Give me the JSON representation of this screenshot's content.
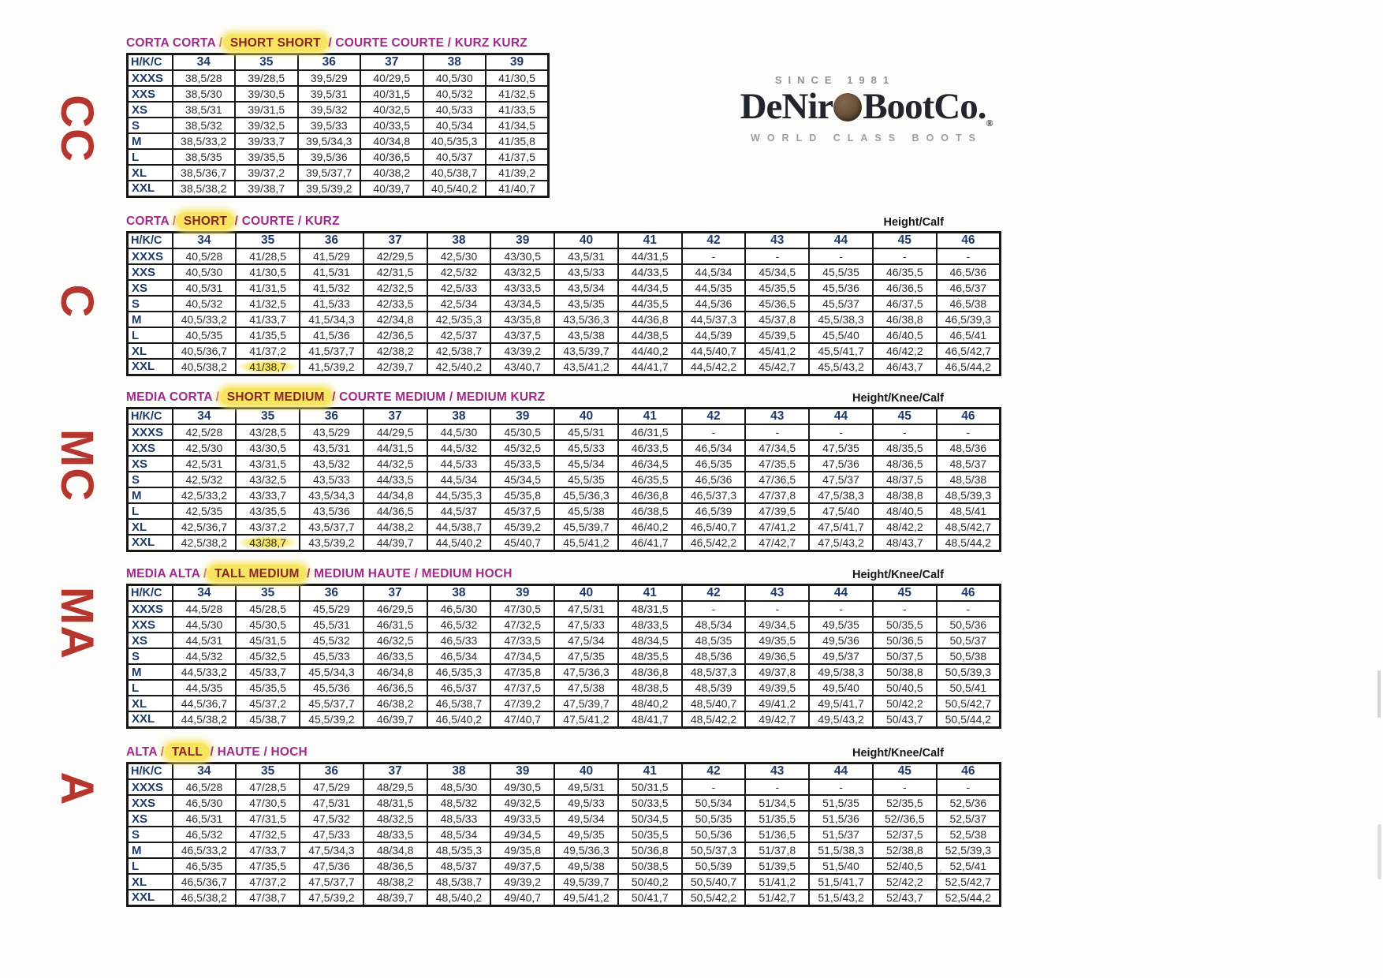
{
  "side_labels": [
    "CC",
    "C",
    "MC",
    "MA",
    "A"
  ],
  "logo": {
    "since": "SINCE 1981",
    "name_left": "DeNir",
    "name_right": "BootCo.",
    "registered": "®",
    "tagline": "WORLD CLASS BOOTS"
  },
  "colors": {
    "title_magenta": "#a02a8c",
    "title_highlight_red": "#8a2424",
    "highlight_yellow": "#f8e55f",
    "header_blue": "#1d3a6c",
    "value_gray": "#2e2e2e",
    "side_letter_red": "#b5362e",
    "logo_dark": "#22242e",
    "logo_gray": "#8e9398",
    "coin_brown": "#6b533c"
  },
  "tables": [
    {
      "id": "corta-corta",
      "title_segments": [
        {
          "t": "CORTA CORTA",
          "hl": false
        },
        {
          "t": " / ",
          "hl": false
        },
        {
          "t": "SHORT SHORT",
          "hl": true
        },
        {
          "t": " / ",
          "hl": false
        },
        {
          "t": "COURTE COURTE",
          "hl": false
        },
        {
          "t": " / ",
          "hl": false
        },
        {
          "t": "KURZ KURZ",
          "hl": false
        }
      ],
      "height_label": "",
      "corner_label": "H/K/C",
      "sizes": [
        "34",
        "35",
        "36",
        "37",
        "38",
        "39"
      ],
      "marked_cells": [],
      "rows": [
        {
          "label": "XXXS",
          "values": [
            "38,5/28",
            "39/28,5",
            "39,5/29",
            "40/29,5",
            "40,5/30",
            "41/30,5"
          ]
        },
        {
          "label": "XXS",
          "values": [
            "38,5/30",
            "39/30,5",
            "39,5/31",
            "40/31,5",
            "40,5/32",
            "41/32,5"
          ]
        },
        {
          "label": "XS",
          "values": [
            "38,5/31",
            "39/31,5",
            "39,5/32",
            "40/32,5",
            "40,5/33",
            "41/33,5"
          ]
        },
        {
          "label": "S",
          "values": [
            "38,5/32",
            "39/32,5",
            "39,5/33",
            "40/33,5",
            "40,5/34",
            "41/34,5"
          ]
        },
        {
          "label": "M",
          "values": [
            "38,5/33,2",
            "39/33,7",
            "39,5/34,3",
            "40/34,8",
            "40,5/35,3",
            "41/35,8"
          ]
        },
        {
          "label": "L",
          "values": [
            "38,5/35",
            "39/35,5",
            "39,5/36",
            "40/36,5",
            "40,5/37",
            "41/37,5"
          ]
        },
        {
          "label": "XL",
          "values": [
            "38,5/36,7",
            "39/37,2",
            "39,5/37,7",
            "40/38,2",
            "40,5/38,7",
            "41/39,2"
          ]
        },
        {
          "label": "XXL",
          "values": [
            "38,5/38,2",
            "39/38,7",
            "39,5/39,2",
            "40/39,7",
            "40,5/40,2",
            "41/40,7"
          ]
        }
      ]
    },
    {
      "id": "corta",
      "title_segments": [
        {
          "t": "CORTA",
          "hl": false
        },
        {
          "t": " / ",
          "hl": false
        },
        {
          "t": "SHORT",
          "hl": true
        },
        {
          "t": " / ",
          "hl": false
        },
        {
          "t": "COURTE",
          "hl": false
        },
        {
          "t": " / ",
          "hl": false
        },
        {
          "t": "KURZ",
          "hl": false
        }
      ],
      "height_label": "Height/Calf",
      "corner_label": "H/K/C",
      "sizes": [
        "34",
        "35",
        "36",
        "37",
        "38",
        "39",
        "40",
        "41",
        "42",
        "43",
        "44",
        "45",
        "46"
      ],
      "marked_cells": [
        [
          7,
          1
        ]
      ],
      "rows": [
        {
          "label": "XXXS",
          "values": [
            "40,5/28",
            "41/28,5",
            "41,5/29",
            "42/29,5",
            "42,5/30",
            "43/30,5",
            "43,5/31",
            "44/31,5",
            "-",
            "-",
            "-",
            "-",
            "-"
          ]
        },
        {
          "label": "XXS",
          "values": [
            "40,5/30",
            "41/30,5",
            "41,5/31",
            "42/31,5",
            "42,5/32",
            "43/32,5",
            "43,5/33",
            "44/33,5",
            "44,5/34",
            "45/34,5",
            "45,5/35",
            "46/35,5",
            "46,5/36"
          ]
        },
        {
          "label": "XS",
          "values": [
            "40,5/31",
            "41/31,5",
            "41,5/32",
            "42/32,5",
            "42,5/33",
            "43/33,5",
            "43,5/34",
            "44/34,5",
            "44,5/35",
            "45/35,5",
            "45,5/36",
            "46/36,5",
            "46,5/37"
          ]
        },
        {
          "label": "S",
          "values": [
            "40,5/32",
            "41/32,5",
            "41,5/33",
            "42/33,5",
            "42,5/34",
            "43/34,5",
            "43,5/35",
            "44/35,5",
            "44,5/36",
            "45/36,5",
            "45,5/37",
            "46/37,5",
            "46,5/38"
          ]
        },
        {
          "label": "M",
          "values": [
            "40,5/33,2",
            "41/33,7",
            "41,5/34,3",
            "42/34,8",
            "42,5/35,3",
            "43/35,8",
            "43,5/36,3",
            "44/36,8",
            "44,5/37,3",
            "45/37,8",
            "45,5/38,3",
            "46/38,8",
            "46,5/39,3"
          ]
        },
        {
          "label": "L",
          "values": [
            "40,5/35",
            "41/35,5",
            "41,5/36",
            "42/36,5",
            "42,5/37",
            "43/37,5",
            "43,5/38",
            "44/38,5",
            "44,5/39",
            "45/39,5",
            "45,5/40",
            "46/40,5",
            "46,5/41"
          ]
        },
        {
          "label": "XL",
          "values": [
            "40,5/36,7",
            "41/37,2",
            "41,5/37,7",
            "42/38,2",
            "42,5/38,7",
            "43/39,2",
            "43,5/39,7",
            "44/40,2",
            "44,5/40,7",
            "45/41,2",
            "45,5/41,7",
            "46/42,2",
            "46,5/42,7"
          ]
        },
        {
          "label": "XXL",
          "values": [
            "40,5/38,2",
            "41/38,7",
            "41,5/39,2",
            "42/39,7",
            "42,5/40,2",
            "43/40,7",
            "43,5/41,2",
            "44/41,7",
            "44,5/42,2",
            "45/42,7",
            "45,5/43,2",
            "46/43,7",
            "46,5/44,2"
          ]
        }
      ]
    },
    {
      "id": "media-corta",
      "title_segments": [
        {
          "t": "MEDIA CORTA",
          "hl": false
        },
        {
          "t": " / ",
          "hl": false
        },
        {
          "t": "SHORT MEDIUM",
          "hl": true
        },
        {
          "t": " / ",
          "hl": false
        },
        {
          "t": "COURTE MEDIUM",
          "hl": false
        },
        {
          "t": " / ",
          "hl": false
        },
        {
          "t": "MEDIUM KURZ",
          "hl": false
        }
      ],
      "height_label": "Height/Knee/Calf",
      "corner_label": "H/K/C",
      "sizes": [
        "34",
        "35",
        "36",
        "37",
        "38",
        "39",
        "40",
        "41",
        "42",
        "43",
        "44",
        "45",
        "46"
      ],
      "marked_cells": [
        [
          7,
          1
        ]
      ],
      "rows": [
        {
          "label": "XXXS",
          "values": [
            "42,5/28",
            "43/28,5",
            "43,5/29",
            "44/29,5",
            "44,5/30",
            "45/30,5",
            "45,5/31",
            "46/31,5",
            "-",
            "-",
            "-",
            "-",
            "-"
          ]
        },
        {
          "label": "XXS",
          "values": [
            "42,5/30",
            "43/30,5",
            "43,5/31",
            "44/31,5",
            "44,5/32",
            "45/32,5",
            "45,5/33",
            "46/33,5",
            "46,5/34",
            "47/34,5",
            "47,5/35",
            "48/35,5",
            "48,5/36"
          ]
        },
        {
          "label": "XS",
          "values": [
            "42,5/31",
            "43/31,5",
            "43,5/32",
            "44/32,5",
            "44,5/33",
            "45/33,5",
            "45,5/34",
            "46/34,5",
            "46,5/35",
            "47/35,5",
            "47,5/36",
            "48/36,5",
            "48,5/37"
          ]
        },
        {
          "label": "S",
          "values": [
            "42,5/32",
            "43/32,5",
            "43,5/33",
            "44/33,5",
            "44,5/34",
            "45/34,5",
            "45,5/35",
            "46/35,5",
            "46,5/36",
            "47/36,5",
            "47,5/37",
            "48/37,5",
            "48,5/38"
          ]
        },
        {
          "label": "M",
          "values": [
            "42,5/33,2",
            "43/33,7",
            "43,5/34,3",
            "44/34,8",
            "44,5/35,3",
            "45/35,8",
            "45,5/36,3",
            "46/36,8",
            "46,5/37,3",
            "47/37,8",
            "47,5/38,3",
            "48/38,8",
            "48,5/39,3"
          ]
        },
        {
          "label": "L",
          "values": [
            "42,5/35",
            "43/35,5",
            "43,5/36",
            "44/36,5",
            "44,5/37",
            "45/37,5",
            "45,5/38",
            "46/38,5",
            "46,5/39",
            "47/39,5",
            "47,5/40",
            "48/40,5",
            "48,5/41"
          ]
        },
        {
          "label": "XL",
          "values": [
            "42,5/36,7",
            "43/37,2",
            "43,5/37,7",
            "44/38,2",
            "44,5/38,7",
            "45/39,2",
            "45,5/39,7",
            "46/40,2",
            "46,5/40,7",
            "47/41,2",
            "47,5/41,7",
            "48/42,2",
            "48,5/42,7"
          ]
        },
        {
          "label": "XXL",
          "values": [
            "42,5/38,2",
            "43/38,7",
            "43,5/39,2",
            "44/39,7",
            "44,5/40,2",
            "45/40,7",
            "45,5/41,2",
            "46/41,7",
            "46,5/42,2",
            "47/42,7",
            "47,5/43,2",
            "48/43,7",
            "48,5/44,2"
          ]
        }
      ]
    },
    {
      "id": "media-alta",
      "title_segments": [
        {
          "t": "MEDIA ALTA",
          "hl": false
        },
        {
          "t": " / ",
          "hl": false
        },
        {
          "t": "TALL MEDIUM",
          "hl": true
        },
        {
          "t": " / ",
          "hl": false
        },
        {
          "t": "MEDIUM HAUTE",
          "hl": false
        },
        {
          "t": " / ",
          "hl": false
        },
        {
          "t": "MEDIUM HOCH",
          "hl": false
        }
      ],
      "height_label": "Height/Knee/Calf",
      "corner_label": "H/K/C",
      "sizes": [
        "34",
        "35",
        "36",
        "37",
        "38",
        "39",
        "40",
        "41",
        "42",
        "43",
        "44",
        "45",
        "46"
      ],
      "marked_cells": [],
      "rows": [
        {
          "label": "XXXS",
          "values": [
            "44,5/28",
            "45/28,5",
            "45,5/29",
            "46/29,5",
            "46,5/30",
            "47/30,5",
            "47,5/31",
            "48/31,5",
            "-",
            "-",
            "-",
            "-",
            "-"
          ]
        },
        {
          "label": "XXS",
          "values": [
            "44,5/30",
            "45/30,5",
            "45,5/31",
            "46/31,5",
            "46,5/32",
            "47/32,5",
            "47,5/33",
            "48/33,5",
            "48,5/34",
            "49/34,5",
            "49,5/35",
            "50/35,5",
            "50,5/36"
          ]
        },
        {
          "label": "XS",
          "values": [
            "44,5/31",
            "45/31,5",
            "45,5/32",
            "46/32,5",
            "46,5/33",
            "47/33,5",
            "47,5/34",
            "48/34,5",
            "48,5/35",
            "49/35,5",
            "49,5/36",
            "50/36,5",
            "50,5/37"
          ]
        },
        {
          "label": "S",
          "values": [
            "44,5/32",
            "45/32,5",
            "45,5/33",
            "46/33,5",
            "46,5/34",
            "47/34,5",
            "47,5/35",
            "48/35,5",
            "48,5/36",
            "49/36,5",
            "49,5/37",
            "50/37,5",
            "50,5/38"
          ]
        },
        {
          "label": "M",
          "values": [
            "44,5/33,2",
            "45/33,7",
            "45,5/34,3",
            "46/34,8",
            "46,5/35,3",
            "47/35,8",
            "47,5/36,3",
            "48/36,8",
            "48,5/37,3",
            "49/37,8",
            "49,5/38,3",
            "50/38,8",
            "50,5/39,3"
          ]
        },
        {
          "label": "L",
          "values": [
            "44,5/35",
            "45/35,5",
            "45,5/36",
            "46/36,5",
            "46,5/37",
            "47/37,5",
            "47,5/38",
            "48/38,5",
            "48,5/39",
            "49/39,5",
            "49,5/40",
            "50/40,5",
            "50,5/41"
          ]
        },
        {
          "label": "XL",
          "values": [
            "44,5/36,7",
            "45/37,2",
            "45,5/37,7",
            "46/38,2",
            "46,5/38,7",
            "47/39,2",
            "47,5/39,7",
            "48/40,2",
            "48,5/40,7",
            "49/41,2",
            "49,5/41,7",
            "50/42,2",
            "50,5/42,7"
          ]
        },
        {
          "label": "XXL",
          "values": [
            "44,5/38,2",
            "45/38,7",
            "45,5/39,2",
            "46/39,7",
            "46,5/40,2",
            "47/40,7",
            "47,5/41,2",
            "48/41,7",
            "48,5/42,2",
            "49/42,7",
            "49,5/43,2",
            "50/43,7",
            "50,5/44,2"
          ]
        }
      ]
    },
    {
      "id": "alta",
      "title_segments": [
        {
          "t": "ALTA",
          "hl": false
        },
        {
          "t": " / ",
          "hl": false
        },
        {
          "t": "TALL",
          "hl": true
        },
        {
          "t": " / ",
          "hl": false
        },
        {
          "t": "HAUTE",
          "hl": false
        },
        {
          "t": " / ",
          "hl": false
        },
        {
          "t": "HOCH",
          "hl": false
        }
      ],
      "height_label": "Height/Knee/Calf",
      "corner_label": "H/K/C",
      "sizes": [
        "34",
        "35",
        "36",
        "37",
        "38",
        "39",
        "40",
        "41",
        "42",
        "43",
        "44",
        "45",
        "46"
      ],
      "marked_cells": [],
      "rows": [
        {
          "label": "XXXS",
          "values": [
            "46,5/28",
            "47/28,5",
            "47,5/29",
            "48/29,5",
            "48,5/30",
            "49/30,5",
            "49,5/31",
            "50/31,5",
            "-",
            "-",
            "-",
            "-",
            "-"
          ]
        },
        {
          "label": "XXS",
          "values": [
            "46,5/30",
            "47/30,5",
            "47,5/31",
            "48/31,5",
            "48,5/32",
            "49/32,5",
            "49,5/33",
            "50/33,5",
            "50,5/34",
            "51/34,5",
            "51,5/35",
            "52/35,5",
            "52,5/36"
          ]
        },
        {
          "label": "XS",
          "values": [
            "46,5/31",
            "47/31,5",
            "47,5/32",
            "48/32,5",
            "48,5/33",
            "49/33,5",
            "49,5/34",
            "50/34,5",
            "50,5/35",
            "51/35,5",
            "51,5/36",
            "52//36,5",
            "52,5/37"
          ]
        },
        {
          "label": "S",
          "values": [
            "46,5/32",
            "47/32,5",
            "47,5/33",
            "48/33,5",
            "48,5/34",
            "49/34,5",
            "49,5/35",
            "50/35,5",
            "50,5/36",
            "51/36,5",
            "51,5/37",
            "52/37,5",
            "52,5/38"
          ]
        },
        {
          "label": "M",
          "values": [
            "46,5/33,2",
            "47/33,7",
            "47,5/34,3",
            "48/34,8",
            "48,5/35,3",
            "49/35,8",
            "49,5/36,3",
            "50/36,8",
            "50,5/37,3",
            "51/37,8",
            "51,5/38,3",
            "52/38,8",
            "52,5/39,3"
          ]
        },
        {
          "label": "L",
          "values": [
            "46,5/35",
            "47/35,5",
            "47,5/36",
            "48/36,5",
            "48,5/37",
            "49/37,5",
            "49,5/38",
            "50/38,5",
            "50,5/39",
            "51/39,5",
            "51,5/40",
            "52/40,5",
            "52,5/41"
          ]
        },
        {
          "label": "XL",
          "values": [
            "46,5/36,7",
            "47/37,2",
            "47,5/37,7",
            "48/38,2",
            "48,5/38,7",
            "49/39,2",
            "49,5/39,7",
            "50/40,2",
            "50,5/40,7",
            "51/41,2",
            "51,5/41,7",
            "52/42,2",
            "52,5/42,7"
          ]
        },
        {
          "label": "XXL",
          "values": [
            "46,5/38,2",
            "47/38,7",
            "47,5/39,2",
            "48/39,7",
            "48,5/40,2",
            "49/40,7",
            "49,5/41,2",
            "50/41,7",
            "50,5/42,2",
            "51/42,7",
            "51,5/43,2",
            "52/43,7",
            "52,5/44,2"
          ]
        }
      ]
    }
  ]
}
